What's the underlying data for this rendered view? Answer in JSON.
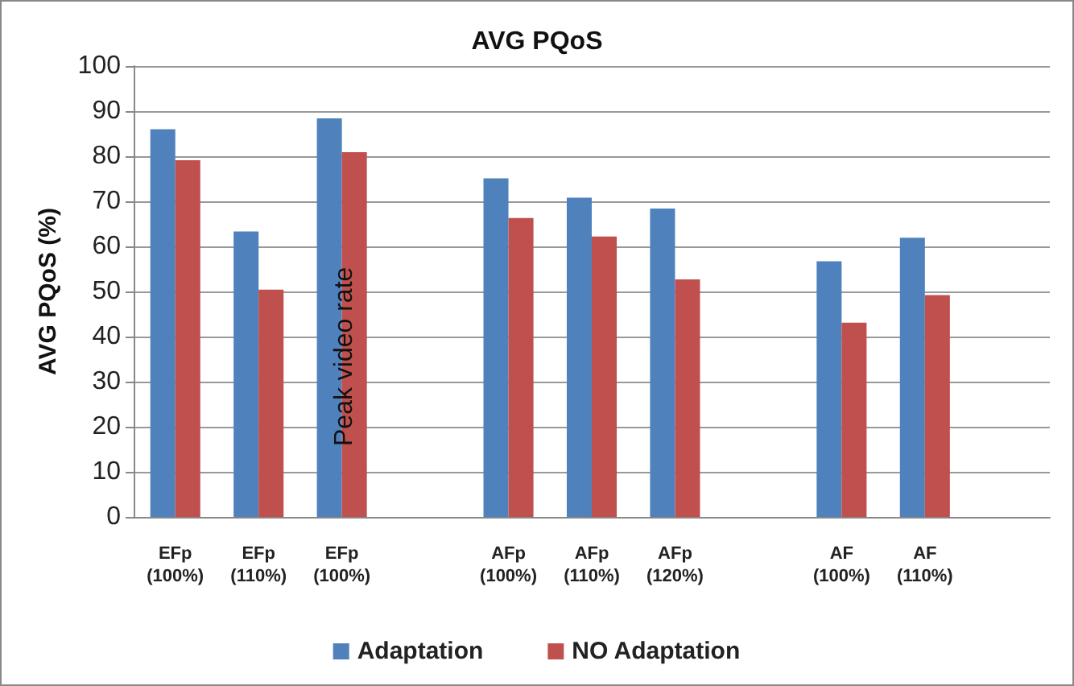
{
  "chart_data": {
    "type": "bar",
    "title": "AVG PQoS",
    "ylabel": "AVG PQoS (%)",
    "categories": [
      "EFp\n(100%)",
      "EFp\n(110%)",
      "EFp\n(100%)",
      null,
      "AFp\n(100%)",
      "AFp\n(110%)",
      "AFp\n(120%)",
      null,
      "AF\n(100%)",
      "AF\n(110%)",
      null
    ],
    "series": [
      {
        "name": "Adaptation",
        "color": "#4f81bd",
        "values": [
          86,
          63.3,
          88.4,
          null,
          75.1,
          70.8,
          68.4,
          null,
          56.7,
          61.9,
          null
        ]
      },
      {
        "name": "NO Adaptation",
        "color": "#c0504d",
        "values": [
          79.1,
          50.4,
          80.9,
          null,
          66.3,
          62.2,
          52.7,
          null,
          43.1,
          49.2,
          null
        ]
      }
    ],
    "ylim": [
      0,
      100
    ],
    "yticks": [
      0,
      10,
      20,
      30,
      40,
      50,
      60,
      70,
      80,
      90,
      100
    ],
    "grid": "y",
    "legend": "bottom",
    "annotations": [
      "Peak video rate"
    ]
  }
}
